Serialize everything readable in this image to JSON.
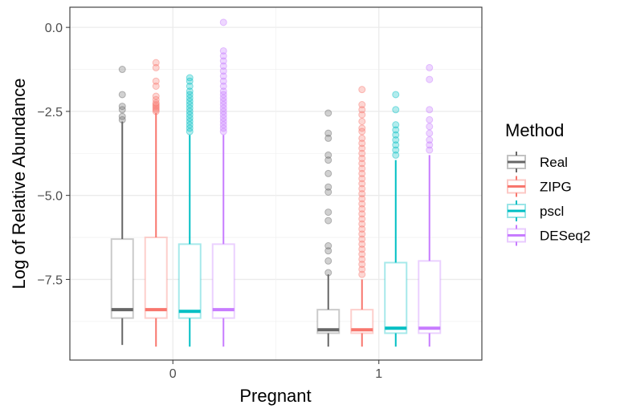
{
  "chart_data": {
    "type": "boxplot",
    "xlabel": "Pregnant",
    "ylabel": "Log of Relative Abundance",
    "categories": [
      "0",
      "1"
    ],
    "ylim": [
      -9.9,
      0.6
    ],
    "yticks": [
      0.0,
      -2.5,
      -5.0,
      -7.5
    ],
    "ytick_labels": [
      "0.0",
      "−2.5",
      "−5.0",
      "−7.5"
    ],
    "legend": {
      "title": "Method",
      "position": "right",
      "entries": [
        "Real",
        "ZIPG",
        "pscl",
        "DESeq2"
      ]
    },
    "series": [
      {
        "name": "Real",
        "color": "#666666",
        "boxes": [
          {
            "category": "0",
            "whisker_low": -9.45,
            "q1": -8.65,
            "median": -8.4,
            "q3": -6.3,
            "whisker_high": -2.8,
            "outliers": [
              -1.25,
              -2.0,
              -2.35,
              -2.45,
              -2.65,
              -2.75
            ]
          },
          {
            "category": "1",
            "whisker_low": -9.5,
            "q1": -9.1,
            "median": -9.0,
            "q3": -8.4,
            "whisker_high": -7.35,
            "outliers": [
              -2.55,
              -3.15,
              -3.3,
              -3.8,
              -3.95,
              -4.35,
              -4.75,
              -4.9,
              -5.5,
              -5.75,
              -6.5,
              -6.65,
              -6.95,
              -7.3
            ]
          }
        ]
      },
      {
        "name": "ZIPG",
        "color": "#F8766D",
        "boxes": [
          {
            "category": "0",
            "whisker_low": -9.5,
            "q1": -8.65,
            "median": -8.4,
            "q3": -6.25,
            "whisker_high": -2.55,
            "outliers": [
              -1.05,
              -1.2,
              -1.6,
              -1.75,
              -2.05,
              -2.15,
              -2.25,
              -2.3,
              -2.35,
              -2.4,
              -2.45,
              -2.5
            ]
          },
          {
            "category": "1",
            "whisker_low": -9.5,
            "q1": -9.1,
            "median": -9.0,
            "q3": -8.4,
            "whisker_high": -7.5,
            "outliers": [
              -1.85,
              -2.3,
              -2.45,
              -2.6,
              -2.8,
              -3.0,
              -3.1,
              -3.3,
              -3.45,
              -3.6,
              -3.75,
              -3.9,
              -4.05,
              -4.2,
              -4.35,
              -4.5,
              -4.65,
              -4.8,
              -4.95,
              -5.1,
              -5.25,
              -5.4,
              -5.55,
              -5.7,
              -5.85,
              -6.0,
              -6.15,
              -6.3,
              -6.45,
              -6.6,
              -6.75,
              -6.9,
              -7.05,
              -7.2,
              -7.35
            ]
          }
        ]
      },
      {
        "name": "pscl",
        "color": "#00BFC4",
        "boxes": [
          {
            "category": "0",
            "whisker_low": -9.5,
            "q1": -8.65,
            "median": -8.45,
            "q3": -6.45,
            "whisker_high": -3.2,
            "outliers": [
              -1.5,
              -1.6,
              -1.75,
              -1.9,
              -2.0,
              -2.1,
              -2.2,
              -2.3,
              -2.4,
              -2.5,
              -2.6,
              -2.7,
              -2.8,
              -2.9,
              -3.0,
              -3.1
            ]
          },
          {
            "category": "1",
            "whisker_low": -9.5,
            "q1": -9.1,
            "median": -8.95,
            "q3": -7.0,
            "whisker_high": -3.95,
            "outliers": [
              -2.0,
              -2.45,
              -2.9,
              -3.05,
              -3.2,
              -3.35,
              -3.5,
              -3.65,
              -3.8
            ]
          }
        ]
      },
      {
        "name": "DESeq2",
        "color": "#C77CFF",
        "boxes": [
          {
            "category": "0",
            "whisker_low": -9.5,
            "q1": -8.65,
            "median": -8.4,
            "q3": -6.45,
            "whisker_high": -3.2,
            "outliers": [
              0.15,
              -0.7,
              -0.85,
              -1.0,
              -1.15,
              -1.3,
              -1.45,
              -1.6,
              -1.75,
              -1.9,
              -2.0,
              -2.1,
              -2.2,
              -2.3,
              -2.4,
              -2.5,
              -2.6,
              -2.7,
              -2.8,
              -2.9,
              -3.0,
              -3.1
            ]
          },
          {
            "category": "1",
            "whisker_low": -9.5,
            "q1": -9.1,
            "median": -8.95,
            "q3": -6.95,
            "whisker_high": -3.8,
            "outliers": [
              -1.2,
              -1.55,
              -2.45,
              -2.75,
              -2.95,
              -3.15,
              -3.35,
              -3.5,
              -3.65
            ]
          }
        ]
      }
    ]
  }
}
